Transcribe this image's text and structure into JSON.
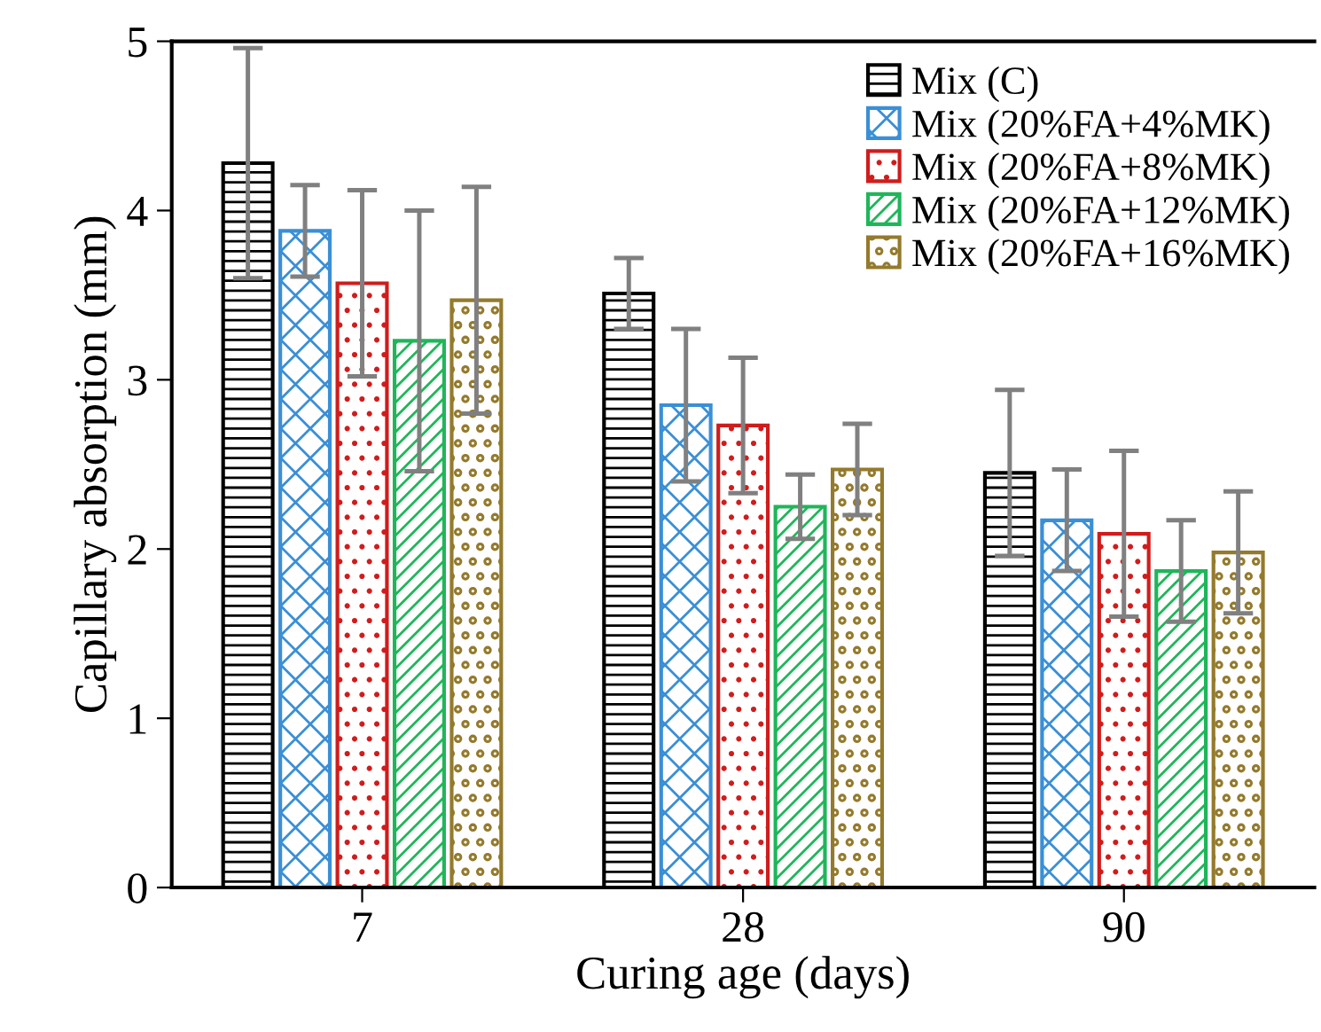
{
  "chart_data": {
    "type": "bar",
    "xlabel": "Curing age (days)",
    "ylabel": "Capillary absorption (mm)",
    "categories": [
      "7",
      "28",
      "90"
    ],
    "series": [
      {
        "name": "Mix (C)",
        "color": "#000000",
        "values": [
          4.28,
          3.51,
          2.45
        ],
        "errors": [
          0.68,
          0.21,
          0.49
        ]
      },
      {
        "name": "Mix (20%FA+4%MK)",
        "color": "#3a8fd6",
        "values": [
          3.88,
          2.85,
          2.17
        ],
        "errors": [
          0.27,
          0.45,
          0.3
        ]
      },
      {
        "name": "Mix (20%FA+8%MK)",
        "color": "#d01c1c",
        "values": [
          3.57,
          2.73,
          2.09
        ],
        "errors": [
          0.55,
          0.4,
          0.49
        ]
      },
      {
        "name": "Mix (20%FA+12%MK)",
        "color": "#1fb65a",
        "values": [
          3.23,
          2.25,
          1.87
        ],
        "errors": [
          0.77,
          0.19,
          0.3
        ]
      },
      {
        "name": "Mix (20%FA+16%MK)",
        "color": "#947a2c",
        "values": [
          3.47,
          2.47,
          1.98
        ],
        "errors": [
          0.67,
          0.27,
          0.36
        ]
      }
    ],
    "ylim": [
      0,
      5
    ],
    "yticks": [
      0,
      1,
      2,
      3,
      4,
      5
    ],
    "grid": false,
    "legend": "top right"
  }
}
